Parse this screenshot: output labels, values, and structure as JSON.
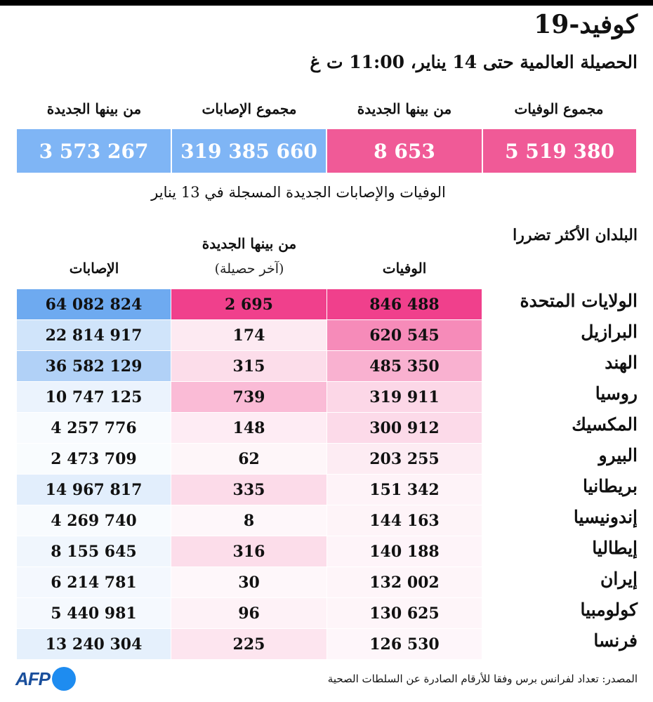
{
  "title": "كوفيد-19",
  "subtitle": "الحصيلة العالمية حتى 14 يناير، 11:00 ت غ",
  "summary": {
    "headers": {
      "total_deaths": "مجموع الوفيات",
      "new_deaths": "من بينها الجديدة",
      "total_cases": "مجموع الإصابات",
      "new_cases": "من بينها الجديدة"
    },
    "values": {
      "total_deaths": "5 519 380",
      "new_deaths": "8 653",
      "total_cases": "319 385 660",
      "new_cases": "3 573 267"
    },
    "note": "الوفيات والإصابات الجديدة المسجلة في 13 يناير"
  },
  "table": {
    "countries_header": "البلدان الأكثر تضررا",
    "col_deaths": "الوفيات",
    "col_new": "من بينها الجديدة",
    "col_new_sub": "(آخر حصيلة)",
    "col_cases": "الإصابات"
  },
  "colors": {
    "summary_pink": "#f05a97",
    "summary_blue": "#7fb5f5",
    "pink_base": [
      240,
      64,
      140
    ],
    "blue_base": [
      110,
      170,
      240
    ]
  },
  "chart_data": {
    "type": "table",
    "rows": [
      {
        "country": "الولايات المتحدة",
        "deaths": 846488,
        "new_deaths": 2695,
        "cases": 64082824,
        "deaths_text": "846 488",
        "new_text": "2 695",
        "cases_text": "64 082 824"
      },
      {
        "country": "البرازيل",
        "deaths": 620545,
        "new_deaths": 174,
        "cases": 22814917,
        "deaths_text": "620 545",
        "new_text": "174",
        "cases_text": "22 814 917"
      },
      {
        "country": "الهند",
        "deaths": 485350,
        "new_deaths": 315,
        "cases": 36582129,
        "deaths_text": "485 350",
        "new_text": "315",
        "cases_text": "36 582 129"
      },
      {
        "country": "روسيا",
        "deaths": 319911,
        "new_deaths": 739,
        "cases": 10747125,
        "deaths_text": "319 911",
        "new_text": "739",
        "cases_text": "10 747 125"
      },
      {
        "country": "المكسيك",
        "deaths": 300912,
        "new_deaths": 148,
        "cases": 4257776,
        "deaths_text": "300 912",
        "new_text": "148",
        "cases_text": "4 257 776"
      },
      {
        "country": "البيرو",
        "deaths": 203255,
        "new_deaths": 62,
        "cases": 2473709,
        "deaths_text": "203 255",
        "new_text": "62",
        "cases_text": "2 473 709"
      },
      {
        "country": "بريطانيا",
        "deaths": 151342,
        "new_deaths": 335,
        "cases": 14967817,
        "deaths_text": "151 342",
        "new_text": "335",
        "cases_text": "14 967 817"
      },
      {
        "country": "إندونيسيا",
        "deaths": 144163,
        "new_deaths": 8,
        "cases": 4269740,
        "deaths_text": "144 163",
        "new_text": "8",
        "cases_text": "4 269 740"
      },
      {
        "country": "إيطاليا",
        "deaths": 140188,
        "new_deaths": 316,
        "cases": 8155645,
        "deaths_text": "140 188",
        "new_text": "316",
        "cases_text": "8 155 645"
      },
      {
        "country": "إيران",
        "deaths": 132002,
        "new_deaths": 30,
        "cases": 6214781,
        "deaths_text": "132 002",
        "new_text": "30",
        "cases_text": "6 214 781"
      },
      {
        "country": "كولومبيا",
        "deaths": 130625,
        "new_deaths": 96,
        "cases": 5440981,
        "deaths_text": "130 625",
        "new_text": "96",
        "cases_text": "5 440 981"
      },
      {
        "country": "فرنسا",
        "deaths": 126530,
        "new_deaths": 225,
        "cases": 13240304,
        "deaths_text": "126 530",
        "new_text": "225",
        "cases_text": "13 240 304"
      }
    ]
  },
  "footer": {
    "source": "المصدر: تعداد لفرانس برس وفقا للأرقام الصادرة عن السلطات الصحية",
    "logo_text": "AFP"
  }
}
